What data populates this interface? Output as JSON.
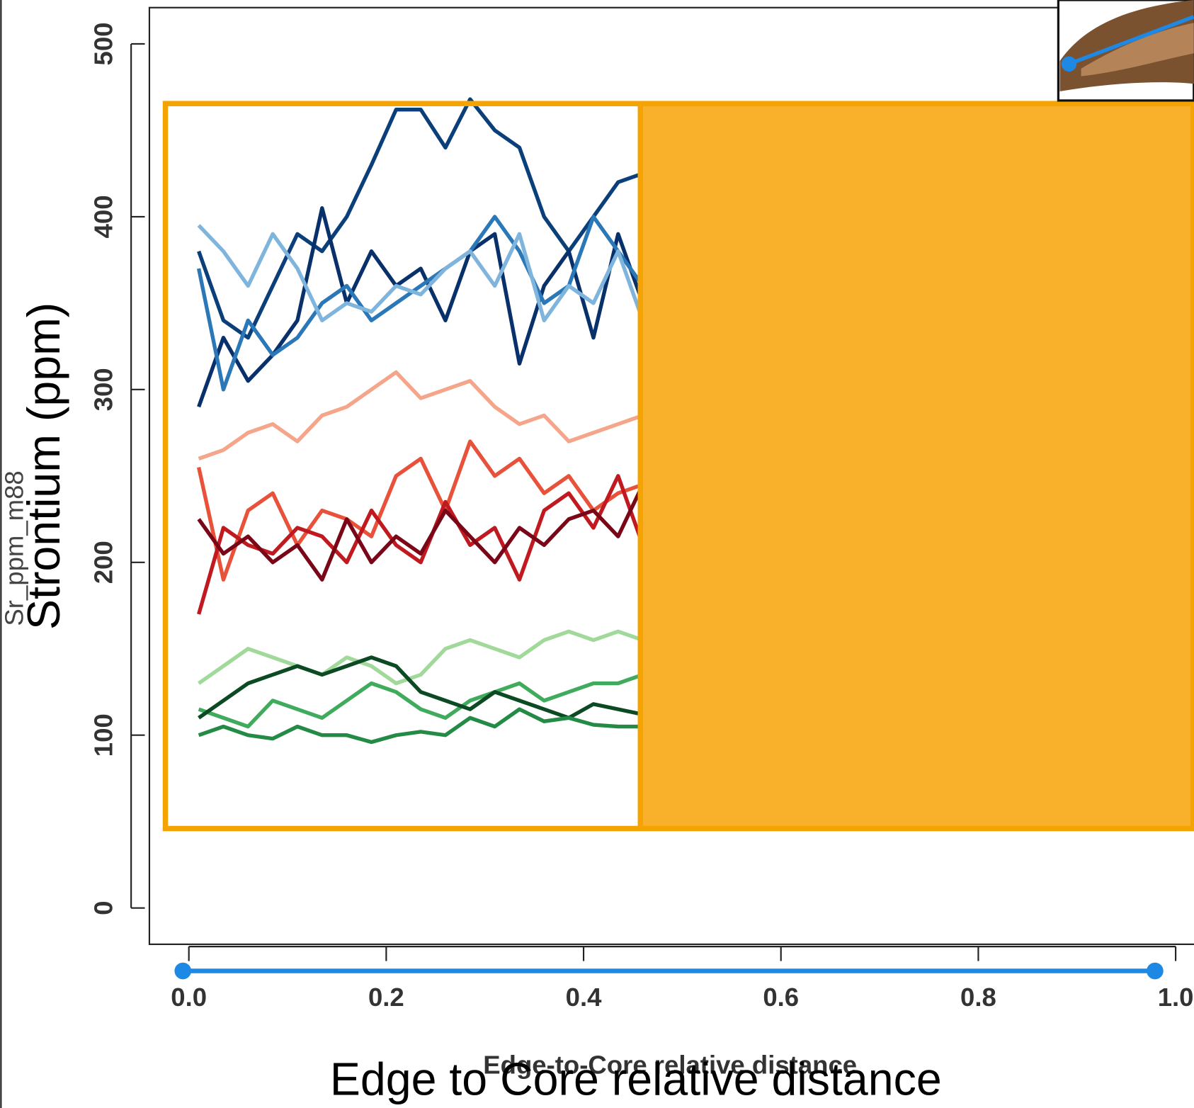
{
  "chart_data": {
    "type": "line",
    "xlabel": "Edge-to-Core relative distance",
    "ylabel": "Sr_ppm_m88",
    "overlay_xlabel": "Edge to Core relative distance",
    "overlay_ylabel": "Strontium (ppm)",
    "xlim": [
      -0.04,
      1.04
    ],
    "ylim": [
      -21,
      521
    ],
    "xticks": [
      {
        "value": 0,
        "label": "0.0"
      },
      0.2,
      0.4,
      0.6,
      0.8,
      {
        "value": 1,
        "label": "1.0"
      }
    ],
    "yticks": [
      0,
      100,
      200,
      300,
      400,
      500
    ],
    "x": [
      0.01,
      0.035,
      0.06,
      0.085,
      0.11,
      0.135,
      0.16,
      0.185,
      0.21,
      0.235,
      0.26,
      0.285,
      0.31,
      0.335,
      0.36,
      0.385,
      0.41,
      0.435,
      0.46
    ],
    "series": [
      {
        "color": "#0b3f7a",
        "values": [
          380,
          340,
          330,
          360,
          390,
          380,
          400,
          430,
          462,
          462,
          440,
          468,
          450,
          440,
          400,
          380,
          400,
          420,
          425
        ]
      },
      {
        "color": "#08306b",
        "values": [
          290,
          330,
          305,
          320,
          340,
          405,
          350,
          380,
          360,
          370,
          340,
          380,
          390,
          315,
          360,
          380,
          330,
          390,
          350
        ]
      },
      {
        "color": "#2b78b8",
        "values": [
          370,
          300,
          340,
          320,
          330,
          350,
          360,
          340,
          350,
          360,
          370,
          380,
          400,
          380,
          350,
          360,
          400,
          380,
          360
        ]
      },
      {
        "color": "#7fb5dc",
        "values": [
          395,
          380,
          360,
          390,
          370,
          340,
          350,
          345,
          360,
          355,
          370,
          380,
          360,
          390,
          340,
          360,
          350,
          380,
          340
        ]
      },
      {
        "color": "#f4a58a",
        "values": [
          260,
          265,
          275,
          280,
          270,
          285,
          290,
          300,
          310,
          295,
          300,
          305,
          290,
          280,
          285,
          270,
          275,
          280,
          285
        ]
      },
      {
        "color": "#e8513a",
        "values": [
          255,
          190,
          230,
          240,
          210,
          230,
          225,
          215,
          250,
          260,
          230,
          270,
          250,
          260,
          240,
          250,
          230,
          240,
          245
        ]
      },
      {
        "color": "#c01a20",
        "values": [
          170,
          220,
          210,
          205,
          220,
          215,
          200,
          230,
          210,
          200,
          235,
          210,
          220,
          190,
          230,
          240,
          220,
          250,
          210
        ]
      },
      {
        "color": "#7a0718",
        "values": [
          225,
          205,
          215,
          200,
          210,
          190,
          225,
          200,
          215,
          205,
          230,
          215,
          200,
          220,
          210,
          225,
          230,
          215,
          245
        ]
      },
      {
        "color": "#a1d99b",
        "values": [
          130,
          140,
          150,
          145,
          140,
          135,
          145,
          140,
          130,
          135,
          150,
          155,
          150,
          145,
          155,
          160,
          155,
          160,
          155
        ]
      },
      {
        "color": "#41ab5d",
        "values": [
          115,
          110,
          105,
          120,
          115,
          110,
          120,
          130,
          125,
          115,
          110,
          120,
          125,
          130,
          120,
          125,
          130,
          130,
          135
        ]
      },
      {
        "color": "#0b4a22",
        "values": [
          110,
          120,
          130,
          135,
          140,
          135,
          140,
          145,
          140,
          125,
          120,
          115,
          125,
          120,
          115,
          110,
          118,
          115,
          112
        ]
      },
      {
        "color": "#238b45",
        "values": [
          100,
          105,
          100,
          98,
          105,
          100,
          100,
          96,
          100,
          102,
          100,
          110,
          105,
          115,
          108,
          110,
          106,
          105,
          105
        ]
      }
    ]
  }
}
